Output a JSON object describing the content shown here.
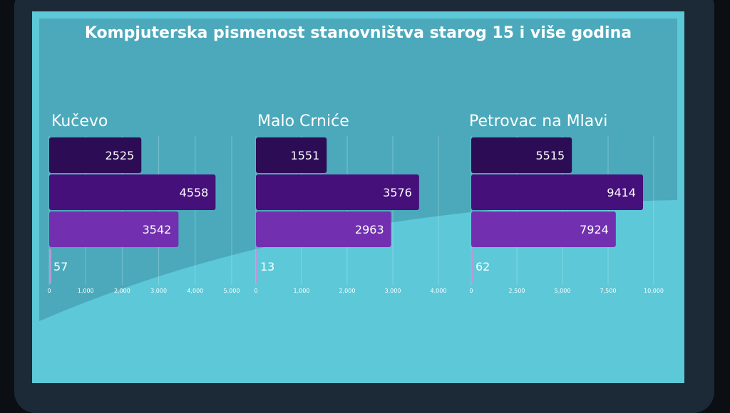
{
  "title": "Kompjuterska pismenost stanovništva starog 15 i više godina",
  "colors": {
    "screen_bg": "#5cc8d8",
    "band": "#4ba9bb",
    "bar_colors": [
      "#2c0d55",
      "#46107a",
      "#7230b0",
      "#b79ad8"
    ]
  },
  "chart_data": [
    {
      "type": "bar",
      "orientation": "horizontal",
      "title": "Kučevo",
      "values": [
        2525,
        4558,
        3542,
        57
      ],
      "xlim": [
        0,
        5000
      ],
      "ticks": [
        "0",
        "1,000",
        "2,000",
        "3,000",
        "4,000",
        "5,000"
      ],
      "grid": true
    },
    {
      "type": "bar",
      "orientation": "horizontal",
      "title": "Malo Crniće",
      "values": [
        1551,
        3576,
        2963,
        13
      ],
      "xlim": [
        0,
        4000
      ],
      "ticks": [
        "0",
        "1,000",
        "2,000",
        "3,000",
        "4,000"
      ],
      "grid": true
    },
    {
      "type": "bar",
      "orientation": "horizontal",
      "title": "Petrovac na Mlavi",
      "values": [
        5515,
        9414,
        7924,
        62
      ],
      "xlim": [
        0,
        10000
      ],
      "ticks": [
        "0",
        "2,500",
        "5,000",
        "7,500",
        "10,000"
      ],
      "grid": true
    }
  ]
}
